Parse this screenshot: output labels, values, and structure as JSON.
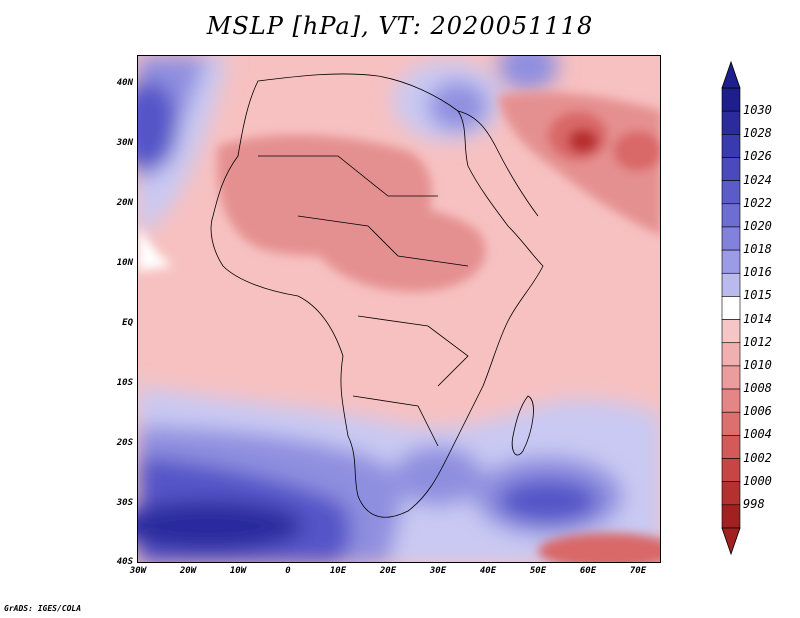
{
  "title": "MSLP [hPa], VT: 2020051118",
  "credit": "GrADS: IGES/COLA",
  "colors": {
    "ocean_high_deep": "#2a2a9e",
    "ocean_high": "#5454c8",
    "ocean_mid": "#8f8fe0",
    "light_blue": "#c9c9f3",
    "white": "#ffffff",
    "light_pink": "#f7c1c1",
    "pink": "#f0a6a6",
    "salmon": "#e59090",
    "red": "#d96868",
    "deep_red": "#b82f2f",
    "coast": "#000000"
  },
  "y_ticks": [
    "40N",
    "30N",
    "20N",
    "10N",
    "EQ",
    "10S",
    "20S",
    "30S",
    "40S"
  ],
  "x_ticks": [
    "30W",
    "20W",
    "10W",
    "0",
    "10E",
    "20E",
    "30E",
    "40E",
    "50E",
    "60E",
    "70E"
  ],
  "colorbar": {
    "labels": [
      "1030",
      "1028",
      "1026",
      "1024",
      "1022",
      "1020",
      "1018",
      "1016",
      "1015",
      "1014",
      "1012",
      "1010",
      "1008",
      "1006",
      "1004",
      "1002",
      "1000",
      "998"
    ],
    "colors": [
      "#1e1e8c",
      "#2b2b9e",
      "#3a3ab0",
      "#4a4abe",
      "#5b5bc9",
      "#6d6dd3",
      "#8282dc",
      "#9c9ce6",
      "#babaef",
      "#ffffff",
      "#f6c6c6",
      "#f1b0b0",
      "#eb9c9c",
      "#e48686",
      "#dd6f6f",
      "#d45a5a",
      "#c94545",
      "#b73030",
      "#a32020"
    ]
  }
}
